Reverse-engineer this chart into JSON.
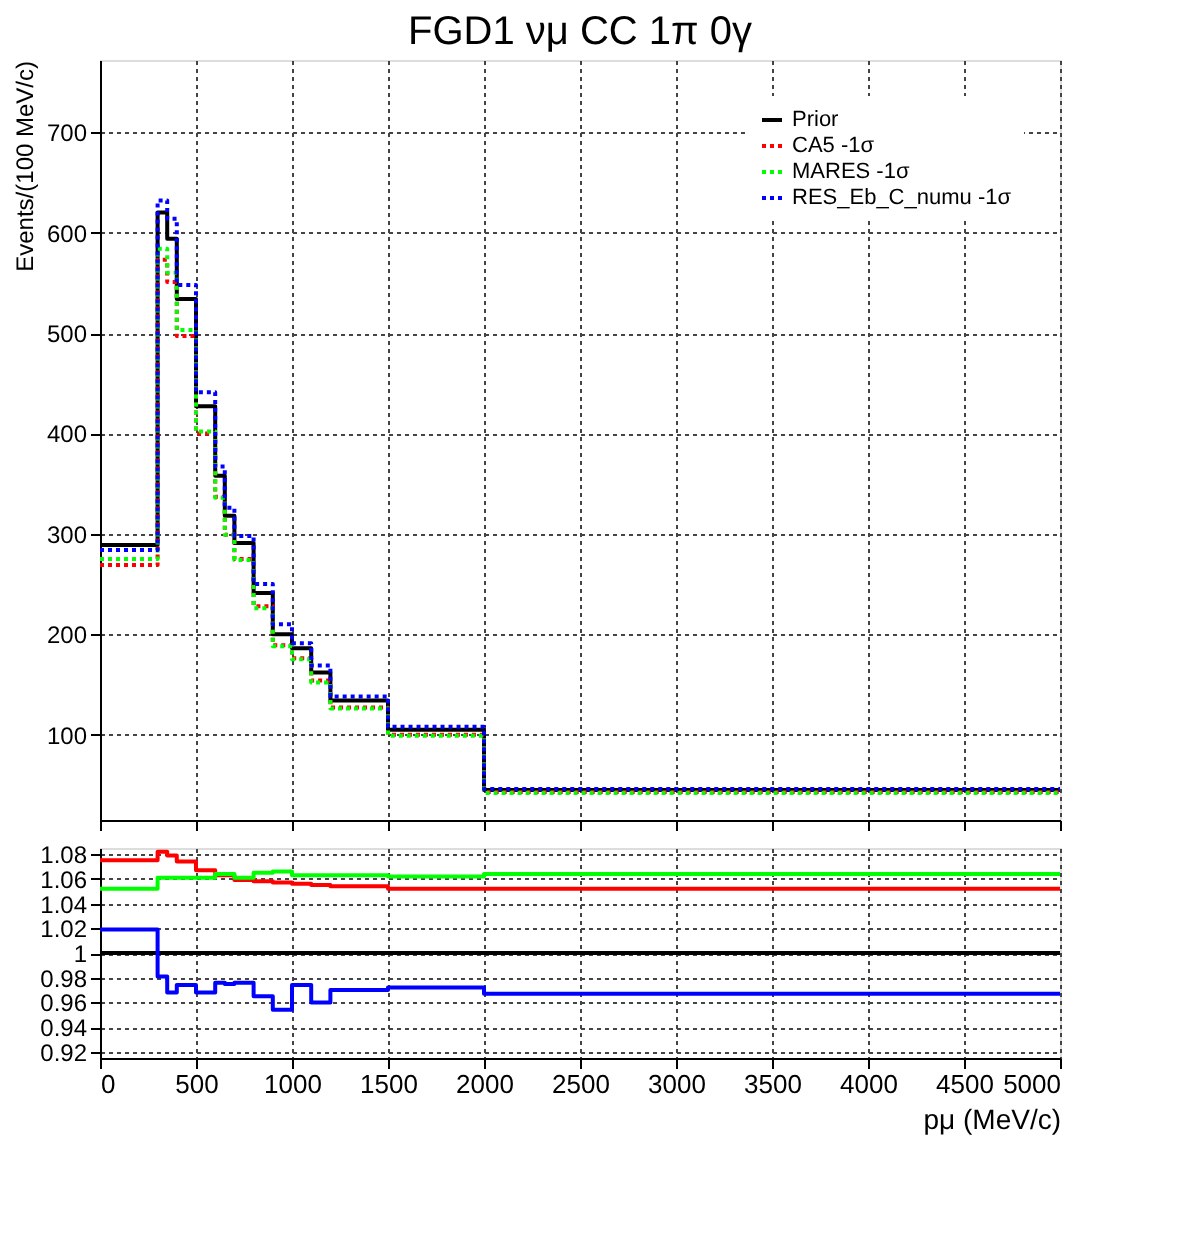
{
  "chart_data": [
    {
      "type": "histogram",
      "title": "FGD1 νμ CC 1π 0γ",
      "ylabel": "Events/(100 MeV/c)",
      "bins": [
        0,
        300,
        350,
        400,
        500,
        600,
        650,
        700,
        800,
        900,
        1000,
        1100,
        1200,
        1500,
        2000,
        5000
      ],
      "series": [
        {
          "name": "Prior",
          "color": "#000000",
          "line_style": "solid",
          "values": [
            289,
            620,
            594,
            534,
            427,
            358,
            318,
            291,
            241,
            200,
            186,
            162,
            134,
            105,
            45
          ]
        },
        {
          "name": "CA5 -1σ",
          "color": "#ff0000",
          "line_style": "dotted",
          "values": [
            269,
            573,
            551,
            497,
            400,
            337,
            299,
            275,
            228,
            189,
            176,
            154,
            127,
            100,
            43
          ]
        },
        {
          "name": "MARES -1σ",
          "color": "#00ff00",
          "line_style": "dotted",
          "values": [
            275,
            584,
            560,
            503,
            402,
            336,
            299,
            274,
            226,
            188,
            175,
            152,
            126,
            99,
            42
          ]
        },
        {
          "name": "RES_Eb_C_numu -1σ",
          "color": "#0000ff",
          "line_style": "dotted",
          "values": [
            284,
            632,
            614,
            548,
            441,
            367,
            326,
            298,
            250,
            210,
            191,
            169,
            138,
            108,
            46
          ]
        }
      ],
      "xlim": [
        0,
        5000
      ],
      "xticks": [
        0,
        500,
        1000,
        1500,
        2000,
        2500,
        3000,
        3500,
        4000,
        4500,
        5000
      ],
      "ylim": [
        15,
        772
      ],
      "yticks": [
        100,
        200,
        300,
        400,
        500,
        600,
        700
      ],
      "grid": true,
      "legend": "top right",
      "tick_labels": "y"
    },
    {
      "type": "histogram",
      "xlabel": "pμ (MeV/c)",
      "bins": [
        0,
        300,
        350,
        400,
        500,
        600,
        650,
        700,
        800,
        900,
        1000,
        1100,
        1200,
        1500,
        2000,
        5000
      ],
      "series": [
        {
          "color": "#000000",
          "values": [
            1,
            1,
            1,
            1,
            1,
            1,
            1,
            1,
            1,
            1,
            1,
            1,
            1,
            1,
            1
          ]
        },
        {
          "color": "#ff0000",
          "values": [
            1.075,
            1.082,
            1.079,
            1.074,
            1.067,
            1.063,
            1.063,
            1.059,
            1.058,
            1.057,
            1.056,
            1.055,
            1.054,
            1.052,
            1.052
          ]
        },
        {
          "color": "#00ff00",
          "values": [
            1.052,
            1.061,
            1.061,
            1.061,
            1.061,
            1.064,
            1.064,
            1.061,
            1.065,
            1.066,
            1.063,
            1.063,
            1.063,
            1.062,
            1.064
          ]
        },
        {
          "color": "#0000ff",
          "values": [
            1.019,
            0.981,
            0.968,
            0.974,
            0.968,
            0.976,
            0.975,
            0.976,
            0.965,
            0.954,
            0.974,
            0.96,
            0.97,
            0.972,
            0.967
          ]
        }
      ],
      "xlim": [
        0,
        5000
      ],
      "xticks": [
        0,
        500,
        1000,
        1500,
        2000,
        2500,
        3000,
        3500,
        4000,
        4500,
        5000
      ],
      "ylim": [
        0.915,
        1.085
      ],
      "yticks": [
        0.92,
        0.94,
        0.96,
        0.98,
        1,
        1.02,
        1.04,
        1.06,
        1.08
      ],
      "grid": true,
      "legend": false
    }
  ]
}
